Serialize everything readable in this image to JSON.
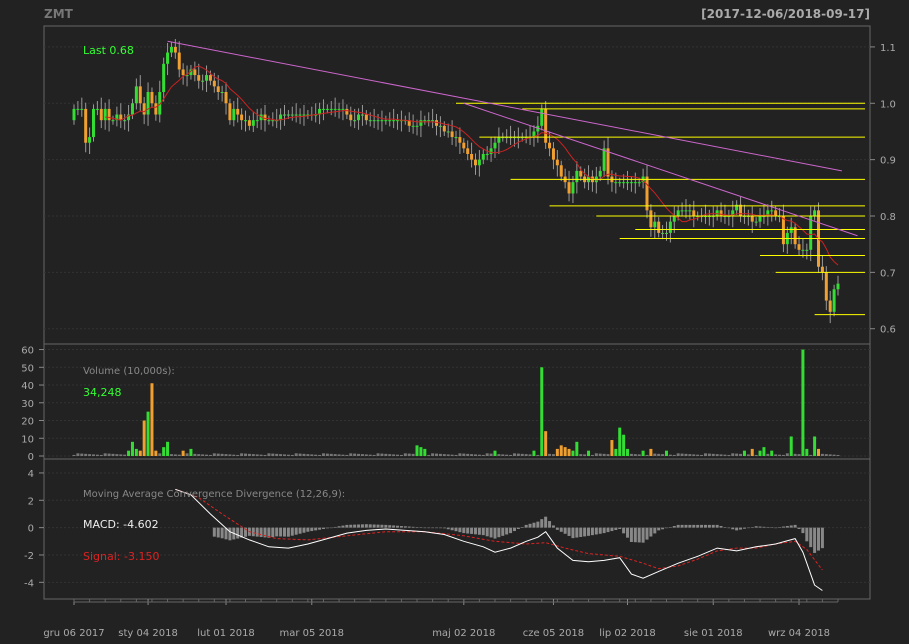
{
  "header": {
    "symbol": "ZMT",
    "date_range": "[2017-12-06/2018-09-17]"
  },
  "colors": {
    "background": "#222222",
    "up": "#33dd33",
    "down": "#f0a030",
    "level_line": "#ffff00",
    "trend_line": "#cc66cc",
    "ma_line": "#cc2222",
    "macd_line": "#ffffff",
    "signal_line": "#dd2222",
    "histogram": "#888888",
    "axis_text": "#aaaaaa"
  },
  "chart_data": [
    {
      "type": "candlestick",
      "panel": "price",
      "last_label": "Last 0.68",
      "ylim": [
        0.58,
        1.13
      ],
      "yticks": [
        0.6,
        0.7,
        0.8,
        0.9,
        1.0,
        1.1
      ],
      "ytick_labels": [
        "0.6",
        "0.7",
        "0.8",
        "0.9",
        "1.0",
        "1.1"
      ],
      "x_tick_labels": [
        "gru 06 2017",
        "sty 04 2018",
        "lut 01 2018",
        "mar 05 2018",
        "maj 02 2018",
        "cze 05 2018",
        "lip 02 2018",
        "sie 01 2018",
        "wrz 04 2018"
      ],
      "x_tick_index": [
        0,
        19,
        39,
        61,
        100,
        123,
        142,
        164,
        186
      ],
      "closes": [
        0.99,
        0.99,
        0.99,
        0.93,
        0.94,
        0.99,
        0.99,
        0.97,
        0.99,
        0.97,
        0.97,
        0.98,
        0.97,
        0.97,
        0.98,
        1.0,
        1.03,
        1.0,
        0.98,
        1.02,
        1.0,
        0.98,
        1.02,
        1.07,
        1.09,
        1.1,
        1.09,
        1.06,
        1.05,
        1.05,
        1.06,
        1.05,
        1.04,
        1.04,
        1.05,
        1.04,
        1.03,
        1.02,
        1.02,
        1.0,
        0.97,
        0.99,
        0.98,
        0.97,
        0.97,
        0.96,
        0.97,
        0.97,
        0.98,
        0.97,
        0.97,
        0.97,
        0.97,
        0.98,
        0.98,
        0.98,
        0.98,
        0.98,
        0.98,
        0.98,
        0.98,
        0.98,
        0.98,
        0.99,
        0.99,
        0.99,
        0.99,
        0.99,
        0.99,
        0.99,
        0.98,
        0.97,
        0.97,
        0.98,
        0.98,
        0.97,
        0.97,
        0.97,
        0.97,
        0.97,
        0.97,
        0.97,
        0.97,
        0.97,
        0.97,
        0.97,
        0.96,
        0.96,
        0.96,
        0.97,
        0.97,
        0.97,
        0.97,
        0.96,
        0.96,
        0.95,
        0.95,
        0.94,
        0.94,
        0.93,
        0.92,
        0.91,
        0.9,
        0.89,
        0.9,
        0.91,
        0.91,
        0.92,
        0.93,
        0.94,
        0.94,
        0.94,
        0.94,
        0.94,
        0.94,
        0.94,
        0.94,
        0.94,
        0.95,
        0.96,
        0.99,
        0.93,
        0.92,
        0.9,
        0.89,
        0.87,
        0.86,
        0.84,
        0.86,
        0.88,
        0.87,
        0.86,
        0.87,
        0.86,
        0.87,
        0.88,
        0.92,
        0.87,
        0.86,
        0.86,
        0.86,
        0.86,
        0.86,
        0.86,
        0.86,
        0.86,
        0.87,
        0.81,
        0.78,
        0.79,
        0.77,
        0.77,
        0.77,
        0.79,
        0.8,
        0.81,
        0.81,
        0.81,
        0.81,
        0.8,
        0.8,
        0.8,
        0.8,
        0.8,
        0.8,
        0.81,
        0.8,
        0.8,
        0.8,
        0.81,
        0.82,
        0.8,
        0.8,
        0.8,
        0.79,
        0.79,
        0.8,
        0.8,
        0.81,
        0.81,
        0.8,
        0.8,
        0.75,
        0.77,
        0.78,
        0.75,
        0.74,
        0.74,
        0.74,
        0.8,
        0.81,
        0.71,
        0.7,
        0.65,
        0.63,
        0.67,
        0.68
      ],
      "horizontal_levels": [
        {
          "y": 1.0,
          "from_index": 98
        },
        {
          "y": 0.99,
          "from_index": 115
        },
        {
          "y": 0.94,
          "from_index": 104
        },
        {
          "y": 0.865,
          "from_index": 112
        },
        {
          "y": 0.818,
          "from_index": 122
        },
        {
          "y": 0.8,
          "from_index": 134
        },
        {
          "y": 0.776,
          "from_index": 144
        },
        {
          "y": 0.76,
          "from_index": 140
        },
        {
          "y": 0.73,
          "from_index": 176
        },
        {
          "y": 0.7,
          "from_index": 180
        },
        {
          "y": 0.625,
          "from_index": 190
        }
      ],
      "trend_lines": [
        {
          "from": [
            24,
            1.11
          ],
          "to": [
            197,
            0.88
          ]
        },
        {
          "from": [
            100,
            1.0
          ],
          "to": [
            201,
            0.765
          ]
        }
      ]
    },
    {
      "type": "bar",
      "panel": "volume",
      "label": "Volume (10,000s):",
      "last_value": "34,248",
      "ylim": [
        0,
        62
      ],
      "yticks": [
        0,
        10,
        20,
        30,
        40,
        50,
        60
      ],
      "ytick_labels": [
        "0",
        "10",
        "20",
        "30",
        "40",
        "50",
        "60"
      ],
      "spikes": [
        {
          "index": 14,
          "value": 3
        },
        {
          "index": 15,
          "value": 8
        },
        {
          "index": 16,
          "value": 4
        },
        {
          "index": 17,
          "value": 3
        },
        {
          "index": 18,
          "value": 20
        },
        {
          "index": 19,
          "value": 25
        },
        {
          "index": 20,
          "value": 41
        },
        {
          "index": 21,
          "value": 3
        },
        {
          "index": 23,
          "value": 5
        },
        {
          "index": 24,
          "value": 8
        },
        {
          "index": 28,
          "value": 3
        },
        {
          "index": 30,
          "value": 4
        },
        {
          "index": 88,
          "value": 6
        },
        {
          "index": 89,
          "value": 5
        },
        {
          "index": 90,
          "value": 4
        },
        {
          "index": 108,
          "value": 3
        },
        {
          "index": 118,
          "value": 3
        },
        {
          "index": 120,
          "value": 50
        },
        {
          "index": 121,
          "value": 14
        },
        {
          "index": 124,
          "value": 4
        },
        {
          "index": 125,
          "value": 6
        },
        {
          "index": 126,
          "value": 5
        },
        {
          "index": 127,
          "value": 4
        },
        {
          "index": 128,
          "value": 3
        },
        {
          "index": 129,
          "value": 8
        },
        {
          "index": 132,
          "value": 3
        },
        {
          "index": 138,
          "value": 9
        },
        {
          "index": 139,
          "value": 4
        },
        {
          "index": 140,
          "value": 16
        },
        {
          "index": 141,
          "value": 12
        },
        {
          "index": 142,
          "value": 4
        },
        {
          "index": 146,
          "value": 3
        },
        {
          "index": 148,
          "value": 4
        },
        {
          "index": 152,
          "value": 3
        },
        {
          "index": 172,
          "value": 3
        },
        {
          "index": 174,
          "value": 4
        },
        {
          "index": 176,
          "value": 3
        },
        {
          "index": 177,
          "value": 5
        },
        {
          "index": 179,
          "value": 3
        },
        {
          "index": 184,
          "value": 11
        },
        {
          "index": 187,
          "value": 60
        },
        {
          "index": 188,
          "value": 4
        },
        {
          "index": 190,
          "value": 11
        },
        {
          "index": 191,
          "value": 4
        }
      ]
    },
    {
      "type": "line",
      "panel": "macd",
      "label": "Moving Average Convergence Divergence (12,26,9):",
      "macd_label": "MACD: -4.602",
      "signal_label": "Signal: -3.150",
      "ylim": [
        -5,
        4.8
      ],
      "yticks": [
        -4,
        -2,
        0,
        2,
        4
      ],
      "ytick_labels": [
        "-4",
        "-2",
        "0",
        "2",
        "4"
      ],
      "macd_points": [
        [
          26,
          2.8
        ],
        [
          30,
          2.4
        ],
        [
          35,
          1.0
        ],
        [
          40,
          -0.3
        ],
        [
          45,
          -0.9
        ],
        [
          50,
          -1.4
        ],
        [
          55,
          -1.5
        ],
        [
          60,
          -1.2
        ],
        [
          65,
          -0.8
        ],
        [
          70,
          -0.4
        ],
        [
          75,
          -0.2
        ],
        [
          80,
          -0.1
        ],
        [
          85,
          -0.2
        ],
        [
          90,
          -0.3
        ],
        [
          95,
          -0.5
        ],
        [
          100,
          -1.0
        ],
        [
          105,
          -1.4
        ],
        [
          108,
          -1.8
        ],
        [
          112,
          -1.5
        ],
        [
          116,
          -1.0
        ],
        [
          119,
          -0.7
        ],
        [
          121,
          -0.3
        ],
        [
          124,
          -1.5
        ],
        [
          128,
          -2.4
        ],
        [
          132,
          -2.5
        ],
        [
          136,
          -2.4
        ],
        [
          140,
          -2.2
        ],
        [
          143,
          -3.4
        ],
        [
          146,
          -3.7
        ],
        [
          150,
          -3.2
        ],
        [
          155,
          -2.6
        ],
        [
          160,
          -2.1
        ],
        [
          165,
          -1.5
        ],
        [
          170,
          -1.7
        ],
        [
          175,
          -1.4
        ],
        [
          180,
          -1.2
        ],
        [
          185,
          -0.8
        ],
        [
          187,
          -1.8
        ],
        [
          190,
          -4.2
        ],
        [
          192,
          -4.6
        ]
      ],
      "signal_points": [
        [
          26,
          2.8
        ],
        [
          32,
          2.2
        ],
        [
          38,
          1.0
        ],
        [
          45,
          -0.3
        ],
        [
          52,
          -0.8
        ],
        [
          60,
          -0.9
        ],
        [
          70,
          -0.6
        ],
        [
          80,
          -0.3
        ],
        [
          90,
          -0.3
        ],
        [
          100,
          -0.6
        ],
        [
          108,
          -1.0
        ],
        [
          116,
          -1.2
        ],
        [
          121,
          -1.1
        ],
        [
          126,
          -1.5
        ],
        [
          132,
          -1.9
        ],
        [
          140,
          -2.1
        ],
        [
          146,
          -2.6
        ],
        [
          150,
          -3.0
        ],
        [
          155,
          -2.8
        ],
        [
          160,
          -2.3
        ],
        [
          165,
          -1.7
        ],
        [
          170,
          -1.5
        ],
        [
          175,
          -1.5
        ],
        [
          180,
          -1.2
        ],
        [
          185,
          -1.0
        ],
        [
          188,
          -1.6
        ],
        [
          192,
          -3.1
        ]
      ],
      "hist_sign": "macd_minus_signal"
    }
  ]
}
